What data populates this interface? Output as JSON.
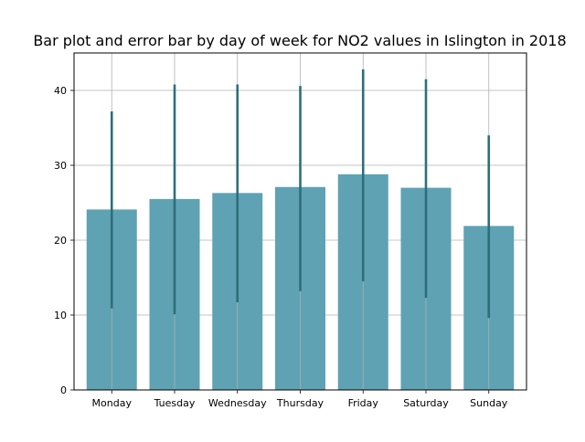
{
  "chart_data": {
    "type": "bar",
    "title": "Bar plot and error bar by day of week for NO2 values in Islington in 2018",
    "xlabel": "",
    "ylabel": "",
    "categories": [
      "Monday",
      "Tuesday",
      "Wednesday",
      "Thursday",
      "Friday",
      "Saturday",
      "Sunday"
    ],
    "values": [
      24.1,
      25.5,
      26.3,
      27.1,
      28.8,
      27.0,
      21.9
    ],
    "error_low": [
      10.9,
      10.1,
      11.7,
      13.2,
      14.5,
      12.3,
      9.6
    ],
    "error_high": [
      37.2,
      40.8,
      40.8,
      40.6,
      42.8,
      41.5,
      34.0
    ],
    "yticks": [
      0,
      10,
      20,
      30,
      40
    ],
    "ylim": [
      0,
      45
    ],
    "grid": true,
    "bar_color": "#5ea2b4",
    "error_color": "#2e6e7a",
    "grid_color": "#b0b0b0"
  }
}
